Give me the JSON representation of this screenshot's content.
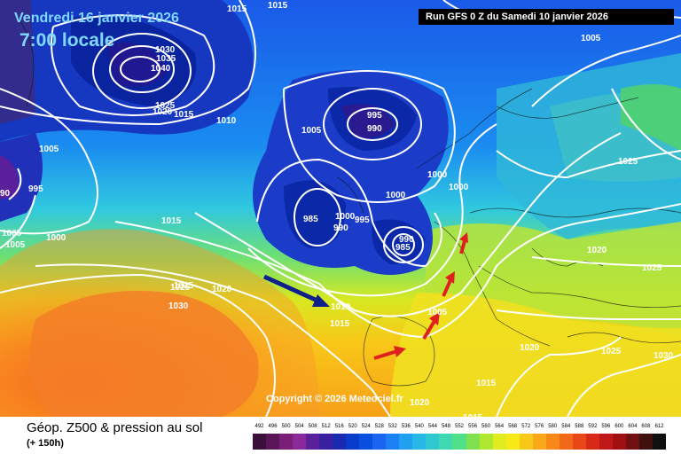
{
  "header": {
    "valid_date": "Vendredi 16 janvier 2026",
    "valid_time": "7:00 locale",
    "run_info": "Run GFS 0 Z du Samedi 10 janvier 2026"
  },
  "copyright": "Copyright © 2026 Meteociel.fr",
  "legend": {
    "title": "Géop. Z500 & pression au sol",
    "subtitle": "(+ 150h)",
    "scale_values": [
      "492",
      "496",
      "500",
      "504",
      "508",
      "512",
      "516",
      "520",
      "524",
      "528",
      "532",
      "536",
      "540",
      "544",
      "548",
      "552",
      "556",
      "560",
      "564",
      "568",
      "572",
      "576",
      "580",
      "584",
      "588",
      "592",
      "596",
      "600",
      "604",
      "608",
      "612"
    ],
    "scale_colors": [
      "#3a0f3a",
      "#5a1458",
      "#7a1e78",
      "#8a2a9a",
      "#5a1f9a",
      "#3a1fa0",
      "#1a2ab0",
      "#0a3ccc",
      "#0a50e0",
      "#1a64f0",
      "#1a80f4",
      "#20a0f0",
      "#28b8e8",
      "#30c8d0",
      "#40d8b0",
      "#50e088",
      "#80e050",
      "#b0e830",
      "#e0ec20",
      "#f8e818",
      "#f8c818",
      "#f8a818",
      "#f88818",
      "#f06818",
      "#e84818",
      "#d82818",
      "#c01818",
      "#a01010",
      "#701010",
      "#401010",
      "#101010"
    ]
  },
  "pressure_labels": [
    {
      "text": "1015"
    },
    {
      "text": "1015"
    },
    {
      "text": "1030"
    },
    {
      "text": "1035"
    },
    {
      "text": "1040"
    },
    {
      "text": "1025"
    },
    {
      "text": "1020"
    },
    {
      "text": "1015"
    },
    {
      "text": "1010"
    },
    {
      "text": "1005"
    },
    {
      "text": "1005"
    },
    {
      "text": "995"
    },
    {
      "text": "990"
    },
    {
      "text": "1005"
    },
    {
      "text": "1000"
    },
    {
      "text": "1000"
    },
    {
      "text": "1000"
    },
    {
      "text": "1025"
    },
    {
      "text": "985"
    },
    {
      "text": "990"
    },
    {
      "text": "995"
    },
    {
      "text": "990"
    },
    {
      "text": "985"
    },
    {
      "text": "1015"
    },
    {
      "text": "1000"
    },
    {
      "text": "1005"
    },
    {
      "text": "1005"
    },
    {
      "text": "1000"
    },
    {
      "text": "995"
    },
    {
      "text": "90"
    },
    {
      "text": "1020"
    },
    {
      "text": "1025"
    },
    {
      "text": "1025"
    },
    {
      "text": "1030"
    },
    {
      "text": "1020"
    },
    {
      "text": "1010"
    },
    {
      "text": "1015"
    },
    {
      "text": "1005"
    },
    {
      "text": "1025"
    },
    {
      "text": "1020"
    },
    {
      "text": "1025"
    },
    {
      "text": "1030"
    },
    {
      "text": "1015"
    },
    {
      "text": "1020"
    },
    {
      "text": "1015"
    }
  ]
}
